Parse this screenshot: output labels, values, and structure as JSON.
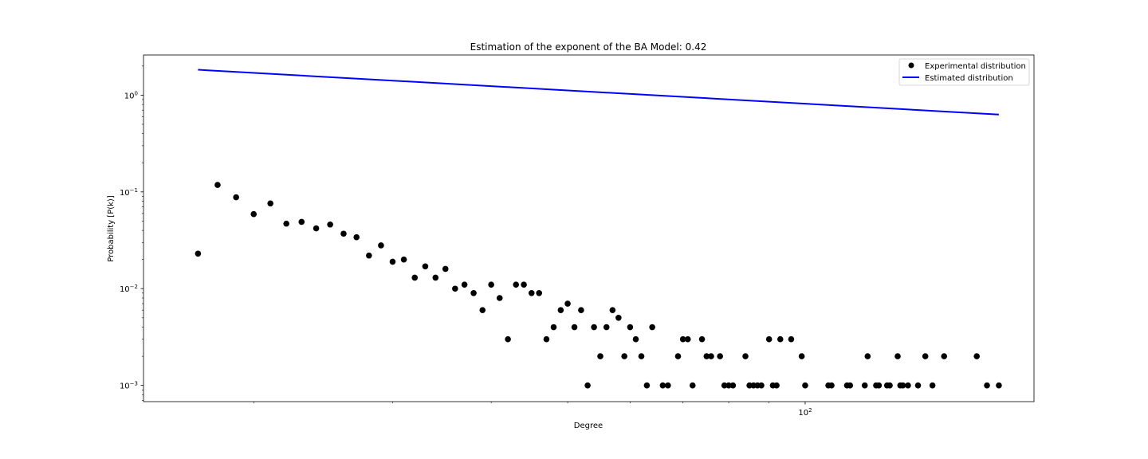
{
  "chart_data": {
    "type": "scatter",
    "title": "Estimation of the exponent of the BA Model:  0.42",
    "xlabel": "Degree",
    "ylabel": "Probability [P(k)]",
    "xscale": "log",
    "yscale": "log",
    "xlim": [
      14.5,
      195
    ],
    "ylim": [
      0.00068,
      2.6
    ],
    "grid": false,
    "legend_position": "top-right",
    "x_major_ticks": [
      {
        "value": 100,
        "base": "10",
        "exp": "2"
      }
    ],
    "x_minor_ticks": [
      20,
      30,
      40,
      50,
      60,
      70,
      80,
      90,
      200
    ],
    "y_major_ticks": [
      {
        "value": 0.001,
        "base": "10",
        "exp": "−3"
      },
      {
        "value": 0.01,
        "base": "10",
        "exp": "−2"
      },
      {
        "value": 0.1,
        "base": "10",
        "exp": "−1"
      },
      {
        "value": 1,
        "base": "10",
        "exp": "0"
      }
    ],
    "series": [
      {
        "name": "Experimental distribution",
        "kind": "scatter",
        "color": "#000000",
        "points": [
          [
            17.0,
            0.023
          ],
          [
            18.0,
            0.118
          ],
          [
            19.0,
            0.088
          ],
          [
            20.0,
            0.059
          ],
          [
            21.0,
            0.076
          ],
          [
            22.0,
            0.047
          ],
          [
            23.0,
            0.049
          ],
          [
            24.0,
            0.042
          ],
          [
            25.0,
            0.046
          ],
          [
            26.0,
            0.037
          ],
          [
            27.0,
            0.034
          ],
          [
            28.0,
            0.022
          ],
          [
            29.0,
            0.028
          ],
          [
            30.0,
            0.019
          ],
          [
            31.0,
            0.02
          ],
          [
            32.0,
            0.013
          ],
          [
            33.0,
            0.017
          ],
          [
            34.0,
            0.013
          ],
          [
            35.0,
            0.016
          ],
          [
            36.0,
            0.01
          ],
          [
            37.0,
            0.011
          ],
          [
            38.0,
            0.009
          ],
          [
            39.0,
            0.006
          ],
          [
            40.0,
            0.011
          ],
          [
            41.0,
            0.008
          ],
          [
            42.0,
            0.003
          ],
          [
            43.0,
            0.011
          ],
          [
            44.0,
            0.011
          ],
          [
            45.0,
            0.009
          ],
          [
            46.0,
            0.009
          ],
          [
            47.0,
            0.003
          ],
          [
            48.0,
            0.004
          ],
          [
            49.0,
            0.006
          ],
          [
            50.0,
            0.007
          ],
          [
            51.0,
            0.004
          ],
          [
            52.0,
            0.006
          ],
          [
            53.0,
            0.001
          ],
          [
            54.0,
            0.004
          ],
          [
            55.0,
            0.002
          ],
          [
            56.0,
            0.004
          ],
          [
            57.0,
            0.006
          ],
          [
            58.0,
            0.005
          ],
          [
            59.0,
            0.002
          ],
          [
            60.0,
            0.004
          ],
          [
            61.0,
            0.003
          ],
          [
            62.0,
            0.002
          ],
          [
            63.0,
            0.001
          ],
          [
            64.0,
            0.004
          ],
          [
            66.0,
            0.001
          ],
          [
            67.0,
            0.001
          ],
          [
            69.0,
            0.002
          ],
          [
            70.0,
            0.003
          ],
          [
            71.0,
            0.003
          ],
          [
            72.0,
            0.001
          ],
          [
            74.0,
            0.003
          ],
          [
            75.0,
            0.002
          ],
          [
            76.0,
            0.002
          ],
          [
            78.0,
            0.002
          ],
          [
            79.0,
            0.001
          ],
          [
            80.0,
            0.001
          ],
          [
            81.0,
            0.001
          ],
          [
            84.0,
            0.002
          ],
          [
            85.0,
            0.001
          ],
          [
            86.0,
            0.001
          ],
          [
            87.0,
            0.001
          ],
          [
            88.0,
            0.001
          ],
          [
            90.0,
            0.003
          ],
          [
            91.0,
            0.001
          ],
          [
            92.0,
            0.001
          ],
          [
            93.0,
            0.003
          ],
          [
            96.0,
            0.003
          ],
          [
            99.0,
            0.002
          ],
          [
            100.0,
            0.001
          ],
          [
            107.0,
            0.001
          ],
          [
            108.0,
            0.001
          ],
          [
            113.0,
            0.001
          ],
          [
            114.0,
            0.001
          ],
          [
            119.0,
            0.001
          ],
          [
            120.0,
            0.002
          ],
          [
            123.0,
            0.001
          ],
          [
            124.0,
            0.001
          ],
          [
            127.0,
            0.001
          ],
          [
            128.0,
            0.001
          ],
          [
            131.0,
            0.002
          ],
          [
            132.0,
            0.001
          ],
          [
            133.0,
            0.001
          ],
          [
            135.0,
            0.001
          ],
          [
            139.0,
            0.001
          ],
          [
            142.0,
            0.002
          ],
          [
            145.0,
            0.001
          ],
          [
            150.0,
            0.002
          ],
          [
            165.0,
            0.002
          ],
          [
            170.0,
            0.001
          ],
          [
            176.0,
            0.001
          ]
        ]
      },
      {
        "name": "Estimated distribution",
        "kind": "line",
        "color": "#0000ff",
        "points": [
          [
            17.0,
            1.83
          ],
          [
            176.0,
            0.63
          ]
        ]
      }
    ]
  }
}
